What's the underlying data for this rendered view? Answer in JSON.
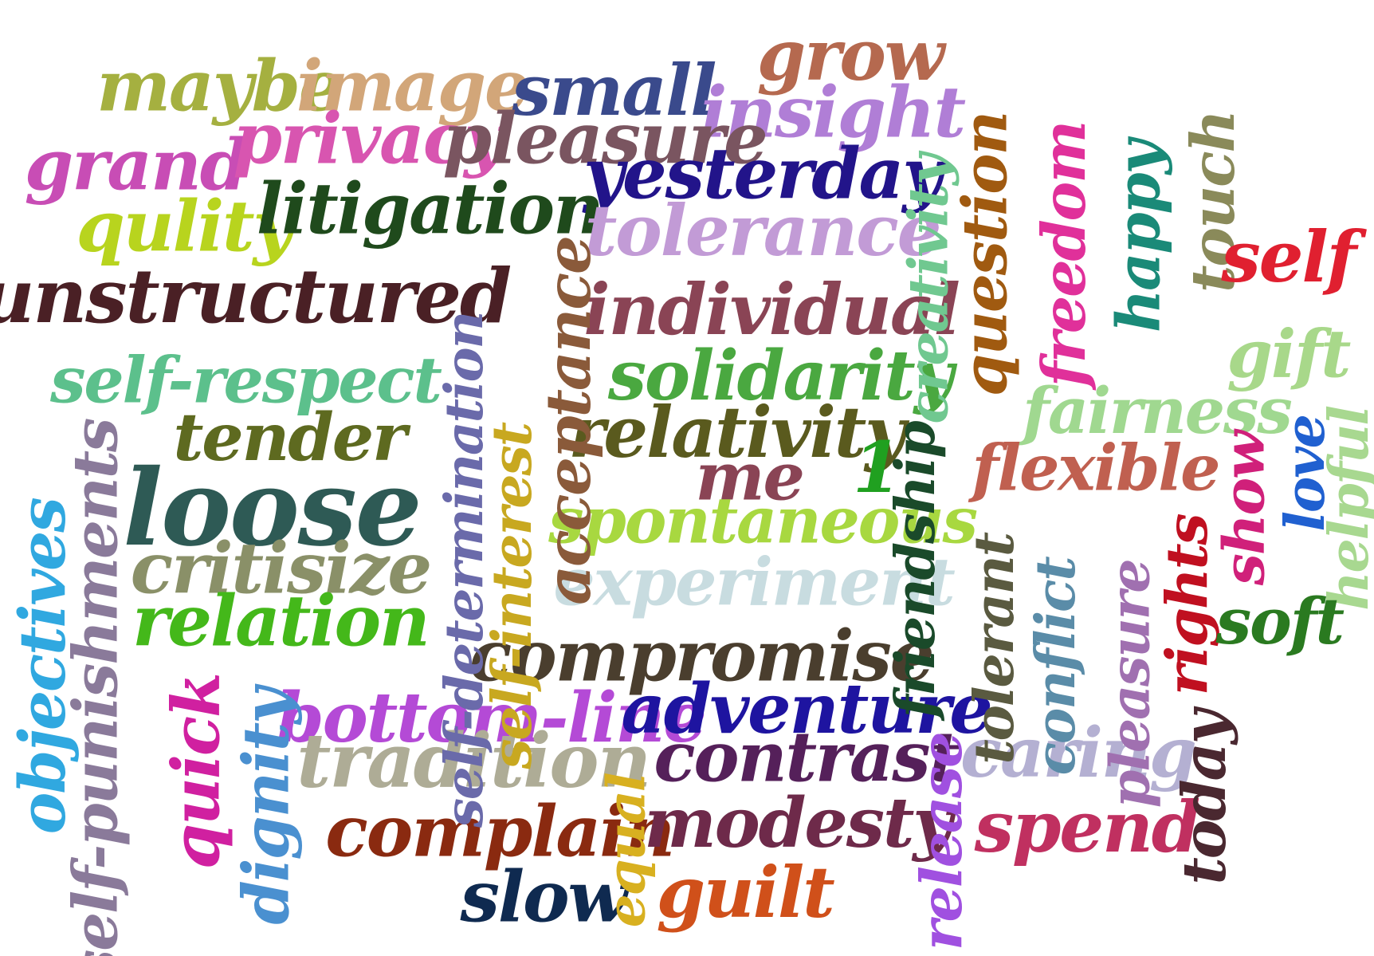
{
  "words": [
    {
      "text": "maybe",
      "color": "#a5b040"
    },
    {
      "text": "image",
      "color": "#d2a679"
    },
    {
      "text": "small",
      "color": "#3a4a8c"
    },
    {
      "text": "grow",
      "color": "#b5694f"
    },
    {
      "text": "insight",
      "color": "#b07ed6"
    },
    {
      "text": "grand",
      "color": "#c84db5"
    },
    {
      "text": "privacy",
      "color": "#d855b0"
    },
    {
      "text": "pleasure",
      "color": "#7a5560"
    },
    {
      "text": "yesterday",
      "color": "#22148a"
    },
    {
      "text": "qulity",
      "color": "#b8d41e"
    },
    {
      "text": "litigation",
      "color": "#1f4a1c"
    },
    {
      "text": "tolerance",
      "color": "#c29bd6"
    },
    {
      "text": "unstructured",
      "color": "#4a2025"
    },
    {
      "text": "individual",
      "color": "#8a4455"
    },
    {
      "text": "self-respect",
      "color": "#5cc08c"
    },
    {
      "text": "solidarity",
      "color": "#4aa840"
    },
    {
      "text": "tender",
      "color": "#5e6a20"
    },
    {
      "text": "relativity",
      "color": "#5a5a1e"
    },
    {
      "text": "loose",
      "color": "#2e5a55"
    },
    {
      "text": "me",
      "color": "#8a4455"
    },
    {
      "text": "spontaneous",
      "color": "#a8d840"
    },
    {
      "text": "critisize",
      "color": "#8a9068"
    },
    {
      "text": "experiment",
      "color": "#c8dce0"
    },
    {
      "text": "relation",
      "color": "#44b81a"
    },
    {
      "text": "compromise",
      "color": "#4a3e2e"
    },
    {
      "text": "bottom-line",
      "color": "#b44ad6"
    },
    {
      "text": "adventure",
      "color": "#1e14a0"
    },
    {
      "text": "tradition",
      "color": "#aeac96"
    },
    {
      "text": "contrast",
      "color": "#55205a"
    },
    {
      "text": "complain",
      "color": "#8a2a10"
    },
    {
      "text": "modesty",
      "color": "#6e2a4a"
    },
    {
      "text": "slow",
      "color": "#0f2a50"
    },
    {
      "text": "guilt",
      "color": "#d0501a"
    },
    {
      "text": "spend",
      "color": "#c03060"
    },
    {
      "text": "caring",
      "color": "#b4b0d2"
    },
    {
      "text": "objectives",
      "color": "#30a8e0"
    },
    {
      "text": "self-punishments",
      "color": "#8a7a9a"
    },
    {
      "text": "quick",
      "color": "#d020a0"
    },
    {
      "text": "dignity",
      "color": "#4a90d0"
    },
    {
      "text": "self-determination",
      "color": "#6a6aaa"
    },
    {
      "text": "self-interest",
      "color": "#c8a820"
    },
    {
      "text": "acceptance",
      "color": "#8a5a3a"
    },
    {
      "text": "creativity",
      "color": "#70c890"
    },
    {
      "text": "question",
      "color": "#a05a10"
    },
    {
      "text": "friendship",
      "color": "#1a4a2a"
    },
    {
      "text": "freedom",
      "color": "#e0309a"
    },
    {
      "text": "happy",
      "color": "#1a8a78"
    },
    {
      "text": "touch",
      "color": "#8a8a5a"
    },
    {
      "text": "self",
      "color": "#e02030"
    },
    {
      "text": "gift",
      "color": "#a8d88a"
    },
    {
      "text": "fairness",
      "color": "#a0d890"
    },
    {
      "text": "flexible",
      "color": "#c06050"
    },
    {
      "text": "tolerant",
      "color": "#5a5a40"
    },
    {
      "text": "conflict",
      "color": "#5a8ca8"
    },
    {
      "text": "pleasure",
      "color": "#a070b0"
    },
    {
      "text": "rights",
      "color": "#c01020"
    },
    {
      "text": "today",
      "color": "#4a2830"
    },
    {
      "text": "show",
      "color": "#d0207a"
    },
    {
      "text": "love",
      "color": "#2060d0"
    },
    {
      "text": "helpful",
      "color": "#a8d890"
    },
    {
      "text": "soft",
      "color": "#2a7a20"
    },
    {
      "text": "release",
      "color": "#a050e0"
    },
    {
      "text": "1",
      "color": "#20a020"
    },
    {
      "text": "equal",
      "color": "#d8b020"
    }
  ]
}
